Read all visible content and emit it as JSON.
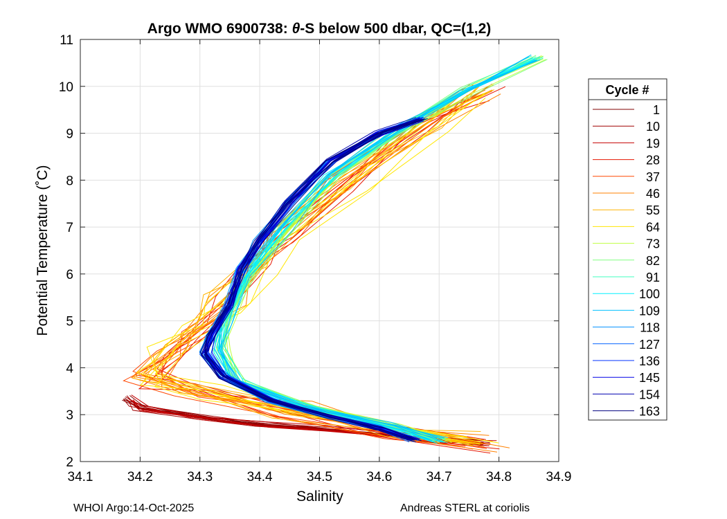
{
  "chart_data": {
    "type": "line",
    "title_prefix": "Argo WMO 6900738: ",
    "title_theta": "θ",
    "title_suffix": "-S below 500 dbar,  QC=(1,2)",
    "xlabel": "Salinity",
    "ylabel": "Potential Temperature (˚C)",
    "xlim": [
      34.1,
      34.9
    ],
    "ylim": [
      2,
      11
    ],
    "xticks": [
      "34.1",
      "34.2",
      "34.3",
      "34.4",
      "34.5",
      "34.6",
      "34.7",
      "34.8",
      "34.9"
    ],
    "yticks": [
      "2",
      "3",
      "4",
      "5",
      "6",
      "7",
      "8",
      "9",
      "10",
      "11"
    ],
    "grid": true,
    "legend_title": "Cycle #",
    "legend_placement": "right outside",
    "series": [
      {
        "name": "1",
        "color": "#800000"
      },
      {
        "name": "10",
        "color": "#a00000"
      },
      {
        "name": "19",
        "color": "#c40000"
      },
      {
        "name": "28",
        "color": "#e61500"
      },
      {
        "name": "37",
        "color": "#ff4600"
      },
      {
        "name": "46",
        "color": "#ff8000"
      },
      {
        "name": "55",
        "color": "#ffb400"
      },
      {
        "name": "64",
        "color": "#ffe600"
      },
      {
        "name": "73",
        "color": "#bfff40"
      },
      {
        "name": "82",
        "color": "#80ff80"
      },
      {
        "name": "91",
        "color": "#40ffbf"
      },
      {
        "name": "100",
        "color": "#00f0ff"
      },
      {
        "name": "109",
        "color": "#00c0ff"
      },
      {
        "name": "118",
        "color": "#0090ff"
      },
      {
        "name": "127",
        "color": "#0060ff"
      },
      {
        "name": "136",
        "color": "#0030ff"
      },
      {
        "name": "145",
        "color": "#0000e6"
      },
      {
        "name": "154",
        "color": "#0000b0"
      },
      {
        "name": "163",
        "color": "#000080"
      }
    ],
    "curve_templates": {
      "warm_branch": [
        [
          34.86,
          10.6
        ],
        [
          34.74,
          9.9
        ],
        [
          34.62,
          9.0
        ],
        [
          34.52,
          8.1
        ],
        [
          34.44,
          7.0
        ],
        [
          34.38,
          6.0
        ],
        [
          34.34,
          5.0
        ],
        [
          34.33,
          4.4
        ],
        [
          34.36,
          3.7
        ],
        [
          34.48,
          3.15
        ],
        [
          34.62,
          2.75
        ],
        [
          34.7,
          2.45
        ]
      ],
      "cold_branch": [
        [
          34.18,
          3.35
        ],
        [
          34.2,
          3.15
        ],
        [
          34.3,
          2.95
        ],
        [
          34.4,
          2.8
        ],
        [
          34.5,
          2.7
        ],
        [
          34.6,
          2.6
        ],
        [
          34.7,
          2.45
        ],
        [
          34.78,
          2.4
        ]
      ],
      "early_scatter": [
        [
          34.78,
          2.4
        ],
        [
          34.62,
          2.7
        ],
        [
          34.45,
          3.1
        ],
        [
          34.3,
          3.5
        ],
        [
          34.22,
          3.8
        ],
        [
          34.26,
          4.3
        ],
        [
          34.3,
          4.8
        ],
        [
          34.35,
          5.4
        ],
        [
          34.4,
          6.2
        ],
        [
          34.45,
          6.9
        ],
        [
          34.55,
          7.9
        ],
        [
          34.68,
          9.2
        ],
        [
          34.78,
          9.9
        ]
      ],
      "late_blue": [
        [
          34.67,
          9.3
        ],
        [
          34.6,
          9.0
        ],
        [
          34.52,
          8.4
        ],
        [
          34.45,
          7.5
        ],
        [
          34.4,
          6.7
        ],
        [
          34.37,
          6.1
        ],
        [
          34.35,
          5.3
        ],
        [
          34.32,
          4.7
        ],
        [
          34.31,
          4.3
        ],
        [
          34.34,
          3.8
        ],
        [
          34.42,
          3.3
        ],
        [
          34.52,
          2.95
        ],
        [
          34.6,
          2.7
        ],
        [
          34.66,
          2.45
        ]
      ]
    }
  },
  "footer": {
    "left": "WHOI Argo:14-Oct-2025",
    "right": "Andreas STERL at coriolis"
  }
}
